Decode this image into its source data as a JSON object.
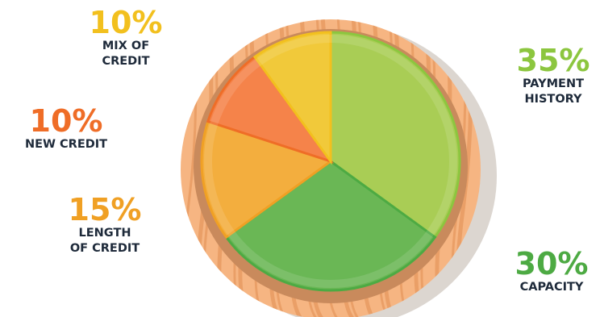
{
  "chart_data": {
    "type": "pie",
    "slices": [
      {
        "label": "PAYMENT\nHISTORY",
        "value": 35,
        "display": "35%",
        "color": "#8cc63f",
        "fill": "#a9cd55"
      },
      {
        "label": "CAPACITY",
        "value": 30,
        "display": "30%",
        "color": "#4daa43",
        "fill": "#6ab755"
      },
      {
        "label": "LENGTH\nOF CREDIT",
        "value": 15,
        "display": "15%",
        "color": "#f0a024",
        "fill": "#f3ae3e"
      },
      {
        "label": "NEW CREDIT",
        "value": 10,
        "display": "10%",
        "color": "#ef6d27",
        "fill": "#f5834a"
      },
      {
        "label": "MIX OF\nCREDIT",
        "value": 10,
        "display": "10%",
        "color": "#f2c01e",
        "fill": "#f1c93a"
      }
    ]
  }
}
